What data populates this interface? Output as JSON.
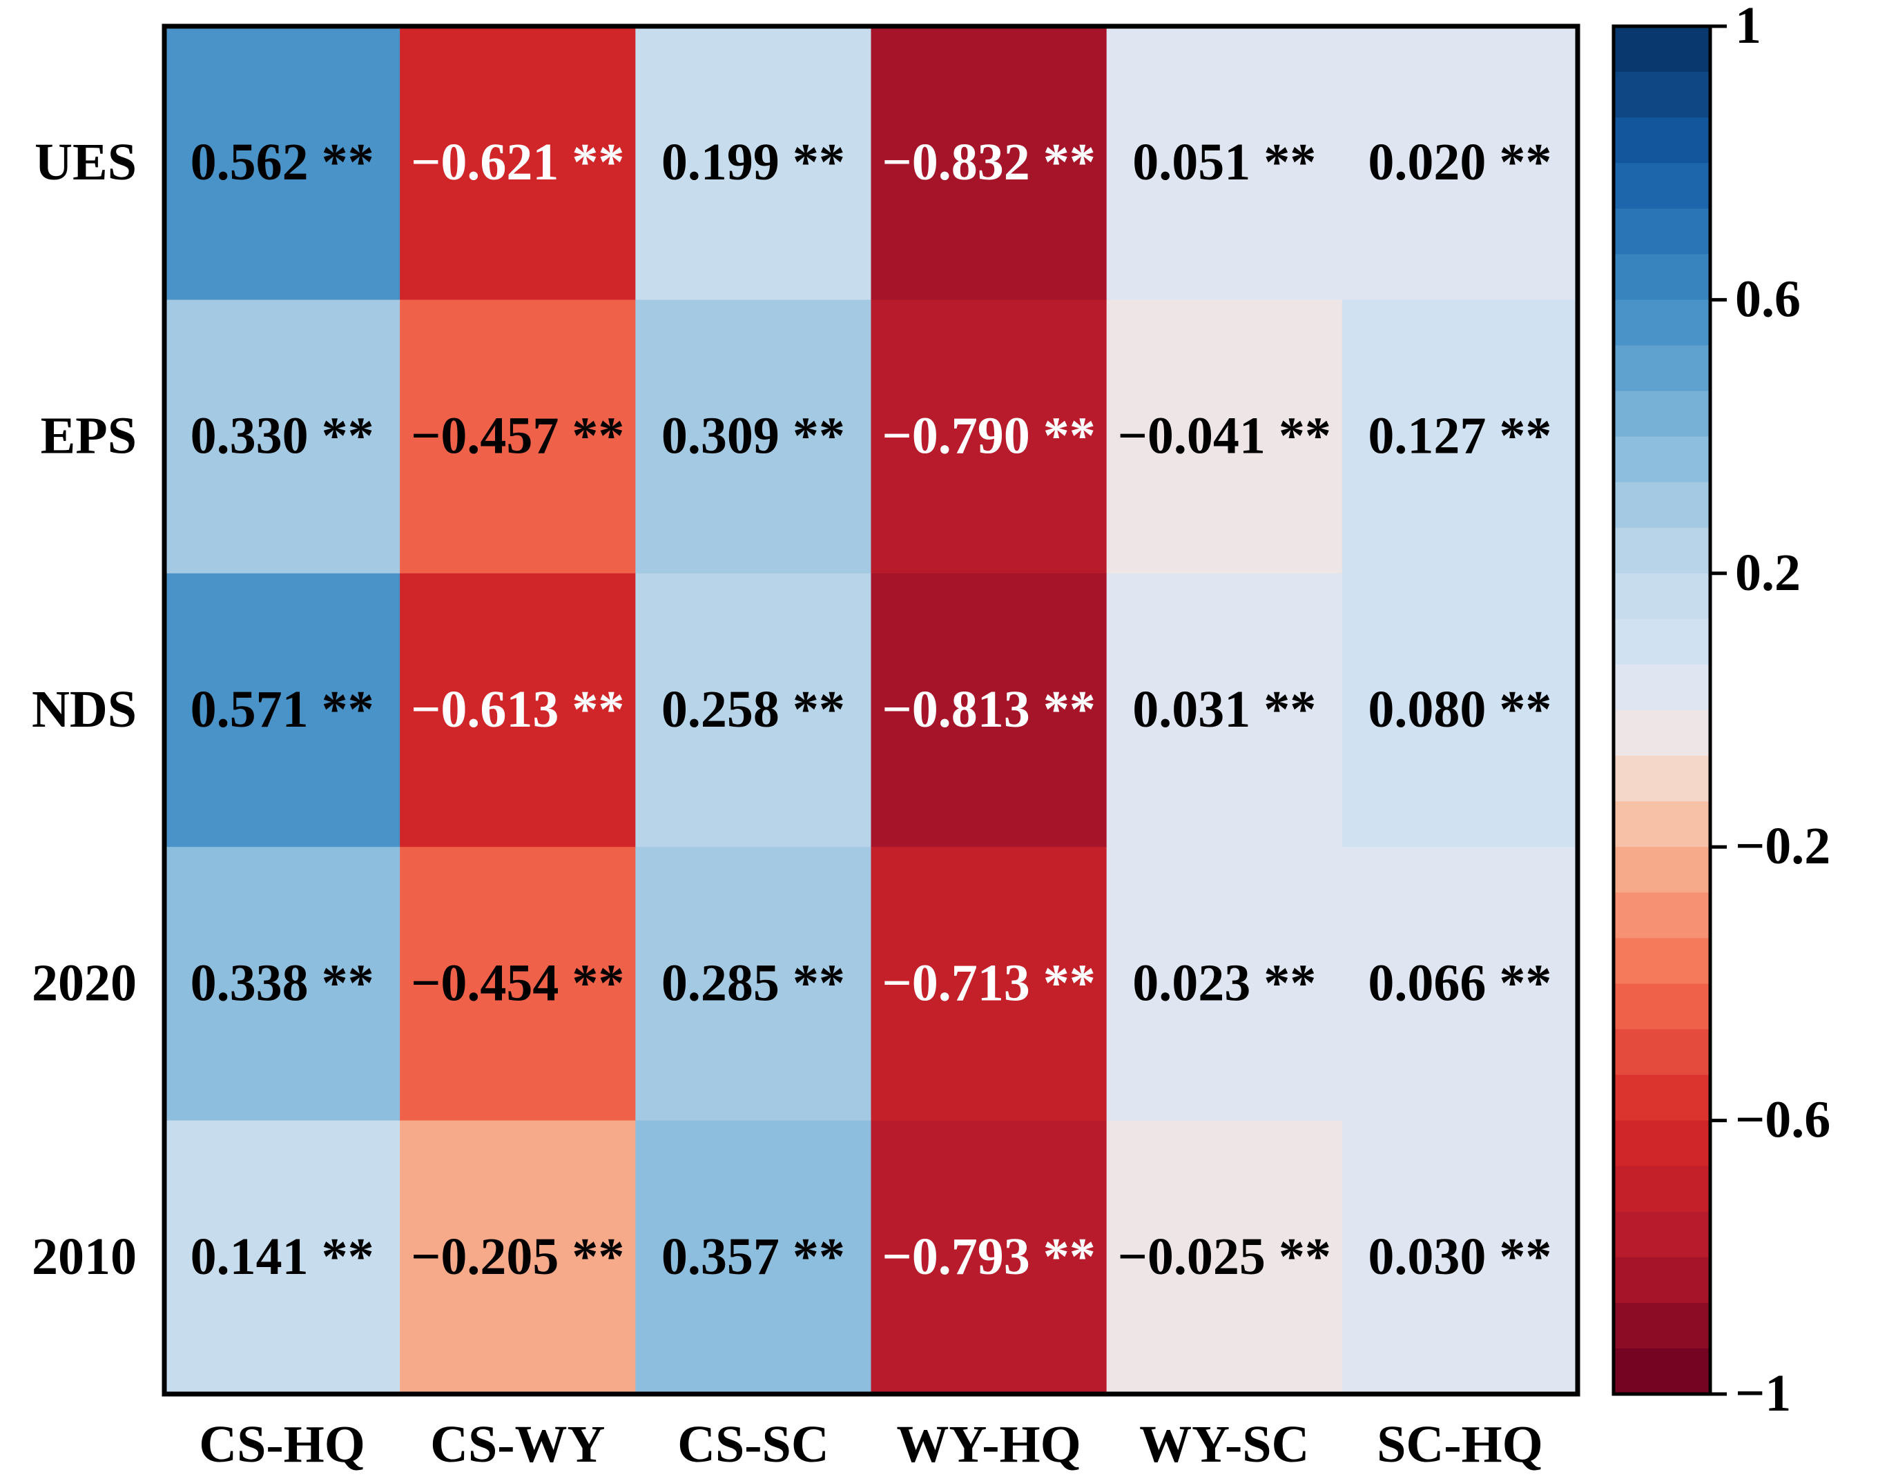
{
  "chart_data": {
    "type": "heatmap",
    "title": "",
    "xlabel": "",
    "ylabel": "",
    "x_categories": [
      "CS-HQ",
      "CS-WY",
      "CS-SC",
      "WY-HQ",
      "WY-SC",
      "SC-HQ"
    ],
    "y_categories": [
      "UES",
      "EPS",
      "NDS",
      "2020",
      "2010"
    ],
    "values": [
      [
        0.562,
        -0.621,
        0.199,
        -0.832,
        0.051,
        0.02
      ],
      [
        0.33,
        -0.457,
        0.309,
        -0.79,
        -0.041,
        0.127
      ],
      [
        0.571,
        -0.613,
        0.258,
        -0.813,
        0.031,
        0.08
      ],
      [
        0.338,
        -0.454,
        0.285,
        -0.713,
        0.023,
        0.066
      ],
      [
        0.141,
        -0.205,
        0.357,
        -0.793,
        -0.025,
        0.03
      ]
    ],
    "labels": [
      [
        "0.562",
        "−0.621",
        "0.199",
        "−0.832",
        "0.051",
        "0.020"
      ],
      [
        "0.330",
        "−0.457",
        "0.309",
        "−0.790",
        "−0.041",
        "0.127"
      ],
      [
        "0.571",
        "−0.613",
        "0.258",
        "−0.813",
        "0.031",
        "0.080"
      ],
      [
        "0.338",
        "−0.454",
        "0.285",
        "−0.713",
        "0.023",
        "0.066"
      ],
      [
        "0.141",
        "−0.205",
        "0.357",
        "−0.793",
        "−0.025",
        "0.030"
      ]
    ],
    "significance": "**",
    "colorbar": {
      "range": [
        -1,
        1
      ],
      "ticks": [
        1,
        0.6,
        0.2,
        -0.2,
        -0.6,
        -1
      ],
      "tick_labels": [
        "1",
        "0.6",
        "0.2",
        "−0.2",
        "−0.6",
        "−1"
      ],
      "levels": 30,
      "colormap": "RdBu"
    },
    "colors": {
      "low": "#67001f",
      "mid": "#e7e8f0",
      "high": "#053061",
      "text_dark": "#000000",
      "text_light": "#ffffff",
      "frame": "#000000"
    }
  }
}
